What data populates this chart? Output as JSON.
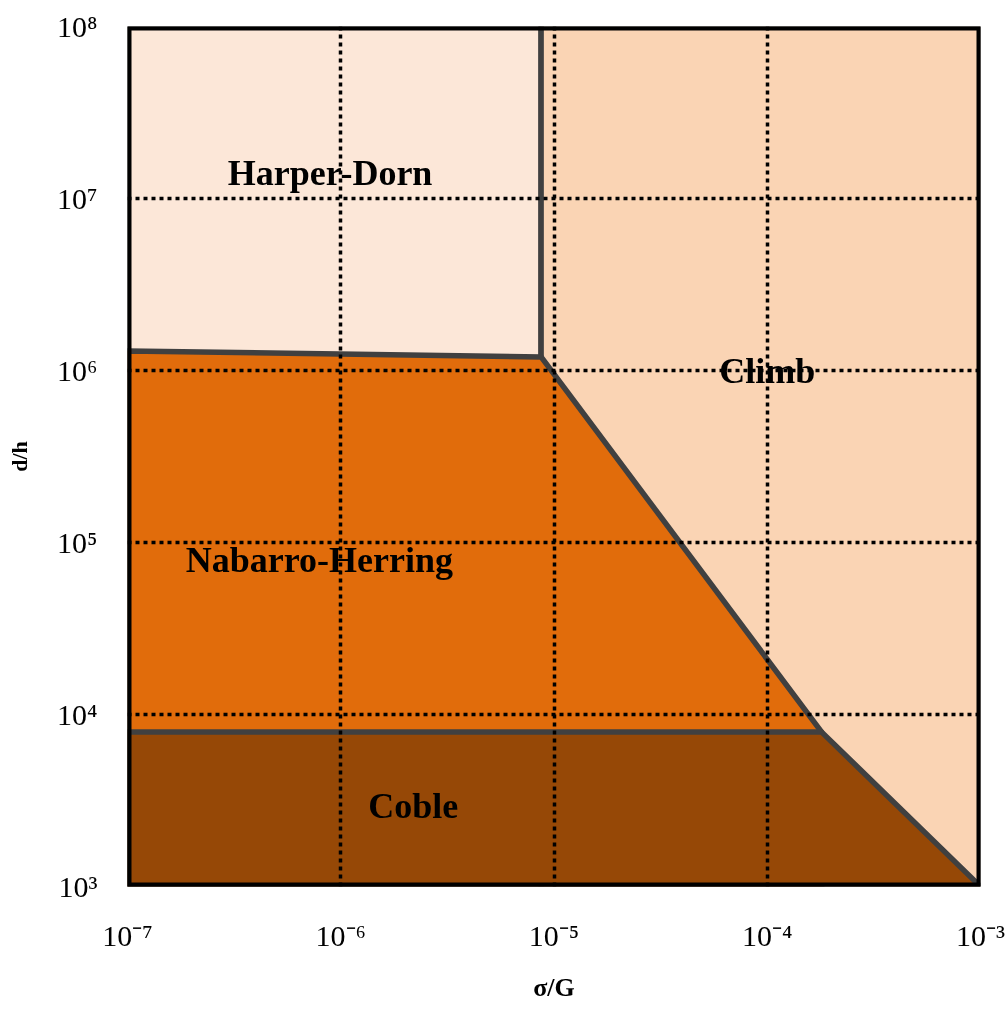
{
  "chart_data": {
    "type": "area",
    "xlabel": "σ/G",
    "ylabel": "d/h",
    "log": "xy",
    "xlim": [
      1e-07,
      0.001
    ],
    "ylim": [
      1000,
      100000000
    ],
    "xticks": [
      {
        "value": 1e-07,
        "label": "10⁻⁷"
      },
      {
        "value": 1e-06,
        "label": "10⁻⁶"
      },
      {
        "value": 1e-05,
        "label": "10⁻⁵"
      },
      {
        "value": 0.0001,
        "label": "10⁻⁴"
      },
      {
        "value": 0.001,
        "label": "10⁻³"
      }
    ],
    "yticks": [
      {
        "value": 1000,
        "label": "10³"
      },
      {
        "value": 10000,
        "label": "10⁴"
      },
      {
        "value": 100000,
        "label": "10⁵"
      },
      {
        "value": 1000000,
        "label": "10⁶"
      },
      {
        "value": 10000000,
        "label": "10⁷"
      },
      {
        "value": 100000000,
        "label": "10⁸"
      }
    ],
    "grid": true,
    "series": [
      {
        "name": "Harper-Dorn",
        "color": "#fce7d8",
        "x": [
          1e-07,
          8.7e-06
        ],
        "values": [
          100000000,
          100000000
        ]
      },
      {
        "name": "Climb",
        "color": "#fad4b4",
        "x": [
          8.7e-06,
          0.001
        ],
        "values": [
          100000000,
          100000000
        ]
      },
      {
        "name": "Nabarro-Herring",
        "color": "#e16c0b",
        "x": [
          1e-07,
          8.7e-06,
          0.00018
        ],
        "values": [
          1300000,
          1200000,
          7900
        ]
      },
      {
        "name": "Coble",
        "color": "#964806",
        "x": [
          1e-07,
          0.00018,
          0.001
        ],
        "values": [
          7900,
          7900,
          1000
        ]
      }
    ]
  }
}
